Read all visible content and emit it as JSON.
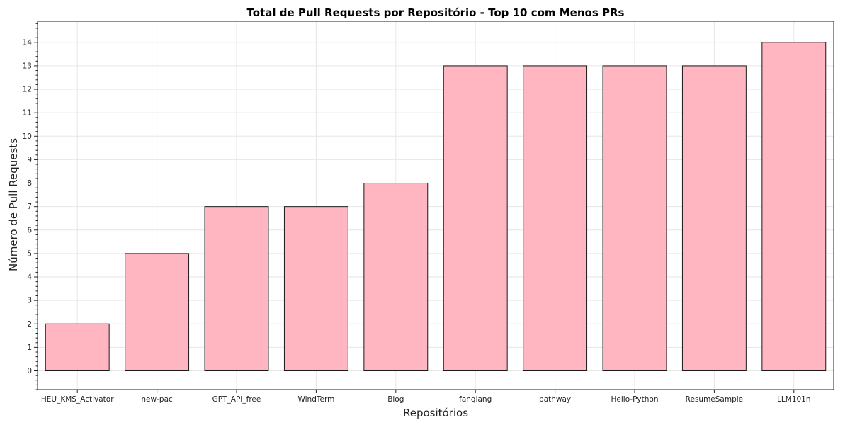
{
  "chart_data": {
    "type": "bar",
    "title": "Total de Pull Requests por Repositório - Top 10 com Menos PRs",
    "xlabel": "Repositórios",
    "ylabel": "Número de Pull Requests",
    "categories": [
      "HEU_KMS_Activator",
      "new-pac",
      "GPT_API_free",
      "WindTerm",
      "Blog",
      "fanqiang",
      "pathway",
      "Hello-Python",
      "ResumeSample",
      "LLM101n"
    ],
    "values": [
      2,
      5,
      7,
      7,
      8,
      13,
      13,
      13,
      13,
      14
    ],
    "ylim": [
      -0.8,
      14.9
    ],
    "yticks": [
      0,
      1,
      2,
      3,
      4,
      5,
      6,
      7,
      8,
      9,
      10,
      11,
      12,
      13,
      14
    ],
    "grid": true,
    "bar_color": "#ffb6c1",
    "bar_edge_color": "#1a1a1a"
  }
}
